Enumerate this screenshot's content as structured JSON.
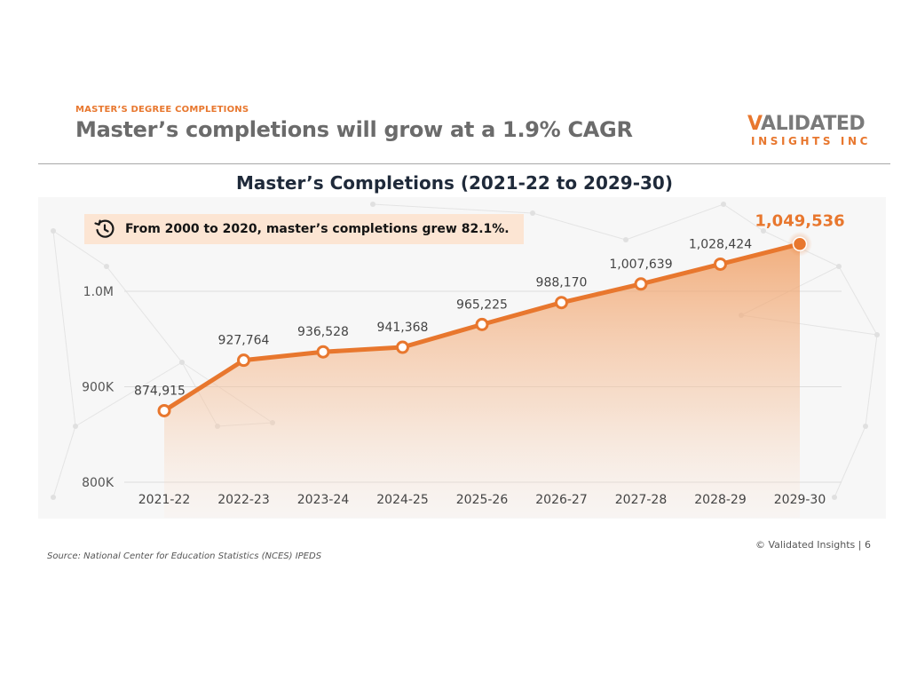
{
  "header": {
    "eyebrow": "MASTER’S DEGREE COMPLETIONS",
    "headline": "Master’s completions will grow at a 1.9% CAGR"
  },
  "logo": {
    "letter_v": "V",
    "rest_top": "ALIDATED",
    "bottom": "INSIGHTS INC"
  },
  "callout": {
    "icon": "clock-history-icon",
    "text": "From 2000 to 2020, master’s completions grew 82.1%."
  },
  "footer": {
    "copyright": "© Validated Insights | 6",
    "source": "Source: National Center for Education Statistics (NCES) IPEDS"
  },
  "colors": {
    "accent": "#E8772E",
    "headline": "#6b6b6b",
    "callout_bg": "#FCE5D3",
    "chart_title": "#1f2a3a"
  },
  "chart_data": {
    "type": "area",
    "title": "Master’s Completions (2021-22 to 2029-30)",
    "xlabel": "",
    "ylabel": "",
    "categories": [
      "2021-22",
      "2022-23",
      "2023-24",
      "2024-25",
      "2025-26",
      "2026-27",
      "2027-28",
      "2028-29",
      "2029-30"
    ],
    "values": [
      874915,
      927764,
      936528,
      941368,
      965225,
      988170,
      1007639,
      1028424,
      1049536
    ],
    "value_labels": [
      "874,915",
      "927,764",
      "936,528",
      "941,368",
      "965,225",
      "988,170",
      "1,007,639",
      "1,028,424",
      "1,049,536"
    ],
    "ylim": [
      800000,
      1000000
    ],
    "y_ticks": [
      800000,
      900000,
      1000000
    ],
    "y_tick_labels": [
      "800K",
      "900K",
      "1.0M"
    ],
    "grid": true,
    "legend": "none"
  }
}
